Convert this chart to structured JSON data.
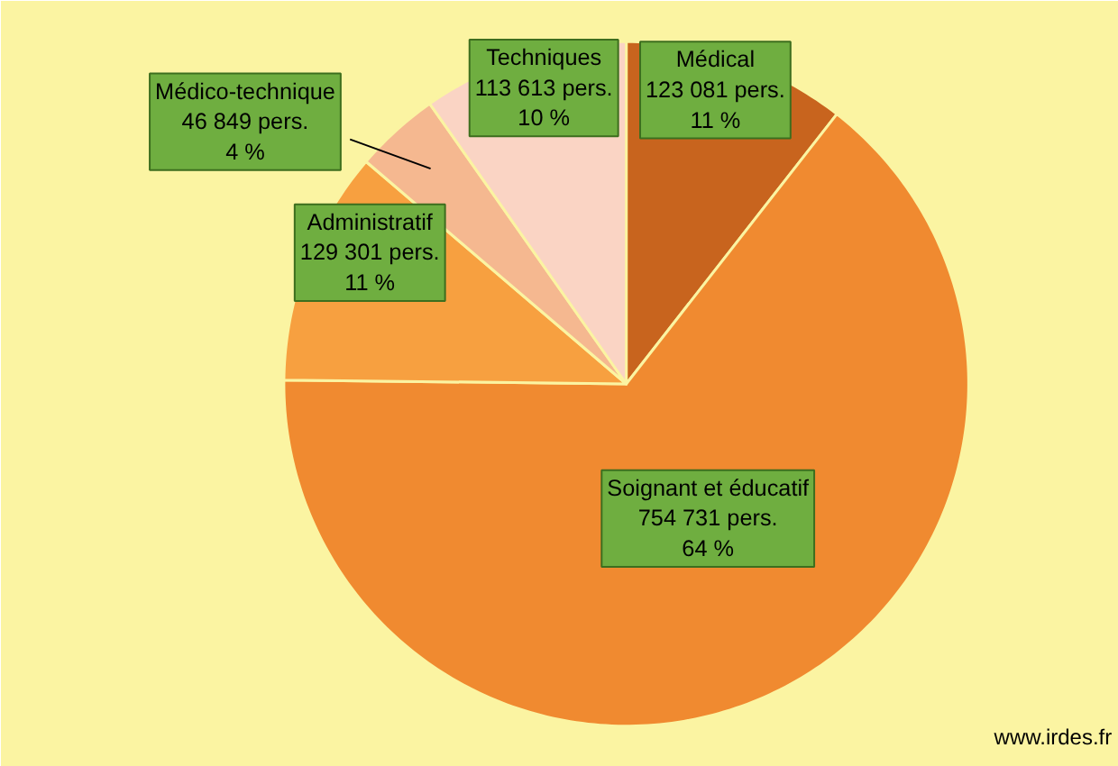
{
  "chart_data": {
    "type": "pie",
    "categories": [
      "Médical",
      "Soignant et éducatif",
      "Administratif",
      "Médico-technique",
      "Techniques"
    ],
    "values": [
      123081,
      754731,
      129301,
      46849,
      113613
    ],
    "colors": [
      "#c8641e",
      "#f08a30",
      "#f7a040",
      "#f5b890",
      "#fad4c4"
    ],
    "value_labels": [
      "123 081 pers.\n11 %",
      "754 731 pers.\n64 %",
      "129 301 pers.\n11 %",
      "46 849 pers.\n4 %",
      "113 613 pers.\n10 %"
    ],
    "annotations": [
      "www.irdes.fr"
    ],
    "legend": false
  }
}
